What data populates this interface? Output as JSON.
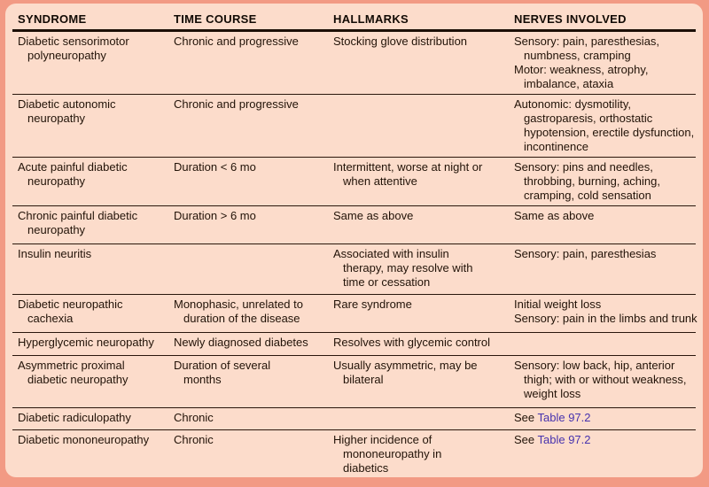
{
  "colors": {
    "frame": "#f29a84",
    "panel": "#fcdccb",
    "text": "#221308",
    "rule": "#2a170c",
    "link": "#4733ae"
  },
  "table": {
    "columns": [
      "SYNDROME",
      "TIME COURSE",
      "HALLMARKS",
      "NERVES INVOLVED"
    ],
    "link_text": "Table 97.2",
    "rows": [
      {
        "min_height": 70,
        "syndrome": [
          {
            "t": "Diabetic sensorimotor"
          },
          {
            "t": "polyneuropathy",
            "indent": true
          }
        ],
        "time_course": [
          {
            "t": "Chronic and progressive"
          }
        ],
        "hallmarks": [
          {
            "t": "Stocking glove distribution"
          }
        ],
        "nerves": [
          {
            "t": "Sensory: pain, paresthesias,"
          },
          {
            "t": "numbness, cramping",
            "indent": true
          },
          {
            "t": "Motor: weakness, atrophy,"
          },
          {
            "t": "imbalance, ataxia",
            "indent": true
          }
        ]
      },
      {
        "min_height": 70,
        "syndrome": [
          {
            "t": "Diabetic autonomic"
          },
          {
            "t": "neuropathy",
            "indent": true
          }
        ],
        "time_course": [
          {
            "t": "Chronic and progressive"
          }
        ],
        "hallmarks": [],
        "nerves": [
          {
            "t": "Autonomic: dysmotility,"
          },
          {
            "t": "gastroparesis, orthostatic",
            "indent": true
          },
          {
            "t": "hypotension, erectile dysfunction,",
            "indent": true
          },
          {
            "t": "incontinence",
            "indent": true
          }
        ]
      },
      {
        "min_height": 54,
        "syndrome": [
          {
            "t": "Acute painful diabetic"
          },
          {
            "t": "neuropathy",
            "indent": true
          }
        ],
        "time_course": [
          {
            "t": "Duration < 6 mo"
          }
        ],
        "hallmarks": [
          {
            "t": "Intermittent, worse at night or"
          },
          {
            "t": "when attentive",
            "indent": true
          }
        ],
        "nerves": [
          {
            "t": "Sensory: pins and needles,"
          },
          {
            "t": "throbbing, burning, aching,",
            "indent": true
          },
          {
            "t": "cramping, cold sensation",
            "indent": true
          }
        ]
      },
      {
        "min_height": 43,
        "syndrome": [
          {
            "t": "Chronic painful diabetic"
          },
          {
            "t": "neuropathy",
            "indent": true
          }
        ],
        "time_course": [
          {
            "t": "Duration > 6 mo"
          }
        ],
        "hallmarks": [
          {
            "t": "Same as above"
          }
        ],
        "nerves": [
          {
            "t": "Same as above"
          }
        ]
      },
      {
        "min_height": 57,
        "syndrome": [
          {
            "t": "Insulin neuritis"
          }
        ],
        "time_course": [],
        "hallmarks": [
          {
            "t": "Associated with insulin"
          },
          {
            "t": "therapy, may resolve with",
            "indent": true
          },
          {
            "t": "time or cessation",
            "indent": true
          }
        ],
        "nerves": [
          {
            "t": "Sensory: pain, paresthesias"
          }
        ]
      },
      {
        "min_height": 43,
        "syndrome": [
          {
            "t": "Diabetic neuropathic"
          },
          {
            "t": "cachexia",
            "indent": true
          }
        ],
        "time_course": [
          {
            "t": "Monophasic, unrelated to"
          },
          {
            "t": "duration of the disease",
            "indent": true
          }
        ],
        "hallmarks": [
          {
            "t": "Rare syndrome"
          }
        ],
        "nerves": [
          {
            "t": "Initial weight loss"
          },
          {
            "t": "Sensory: pain in the limbs and trunk"
          }
        ]
      },
      {
        "min_height": 26,
        "syndrome": [
          {
            "t": "Hyperglycemic neuropathy"
          }
        ],
        "time_course": [
          {
            "t": "Newly diagnosed diabetes"
          }
        ],
        "hallmarks": [
          {
            "t": "Resolves with glycemic control"
          }
        ],
        "nerves": []
      },
      {
        "min_height": 59,
        "syndrome": [
          {
            "t": "Asymmetric proximal"
          },
          {
            "t": "diabetic neuropathy",
            "indent": true
          }
        ],
        "time_course": [
          {
            "t": "Duration of several"
          },
          {
            "t": "months",
            "indent": true
          }
        ],
        "hallmarks": [
          {
            "t": "Usually asymmetric, may be"
          },
          {
            "t": "bilateral",
            "indent": true
          }
        ],
        "nerves": [
          {
            "t": "Sensory: low back, hip, anterior"
          },
          {
            "t": "thigh; with or without weakness,",
            "indent": true
          },
          {
            "t": "weight loss",
            "indent": true
          }
        ]
      },
      {
        "min_height": 25,
        "syndrome": [
          {
            "t": "Diabetic radiculopathy"
          }
        ],
        "time_course": [
          {
            "t": "Chronic"
          }
        ],
        "hallmarks": [],
        "nerves": [
          {
            "t": "See ",
            "link": "Table 97.2"
          }
        ]
      },
      {
        "min_height": 54,
        "syndrome": [
          {
            "t": "Diabetic mononeuropathy"
          }
        ],
        "time_course": [
          {
            "t": "Chronic"
          }
        ],
        "hallmarks": [
          {
            "t": "Higher incidence of"
          },
          {
            "t": "mononeuropathy in",
            "indent": true
          },
          {
            "t": "diabetics",
            "indent": true
          }
        ],
        "nerves": [
          {
            "t": "See ",
            "link": "Table 97.2"
          }
        ]
      }
    ]
  }
}
